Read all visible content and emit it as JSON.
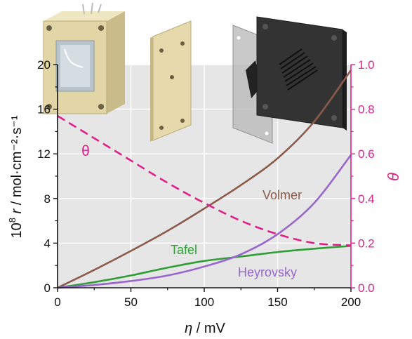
{
  "chart_data": {
    "type": "line",
    "xlabel": {
      "sym": "η",
      "rest": " / mV"
    },
    "ylabel_left": {
      "pre": "10",
      "sup": "8",
      "sym": " r",
      "rest": " / mol·cm⁻²·s⁻¹"
    },
    "ylabel_right": {
      "sym": "θ"
    },
    "xlim": [
      0,
      200
    ],
    "ylim_left": [
      0,
      20
    ],
    "ylim_right": [
      0.0,
      1.0
    ],
    "xticks": [
      "0",
      "50",
      "100",
      "150",
      "200"
    ],
    "yticks_left": [
      "0",
      "4",
      "8",
      "12",
      "16",
      "20"
    ],
    "yticks_right": [
      "0.0",
      "0.2",
      "0.4",
      "0.6",
      "0.8",
      "1.0"
    ],
    "grid": true,
    "colors": {
      "volmer": "#8b5a4a",
      "tafel": "#2e9e35",
      "heyrovsky": "#9966cc",
      "theta": "#e0208a",
      "plot_bg": "#e6e6e6",
      "grid": "#ffffff"
    },
    "series": [
      {
        "name": "Volmer",
        "axis": "left",
        "x": [
          0,
          25,
          50,
          75,
          100,
          125,
          150,
          175,
          200
        ],
        "y": [
          0.0,
          1.6,
          3.3,
          5.1,
          7.1,
          9.2,
          11.6,
          14.9,
          19.5
        ]
      },
      {
        "name": "Tafel",
        "axis": "left",
        "x": [
          0,
          25,
          50,
          75,
          100,
          125,
          150,
          175,
          200
        ],
        "y": [
          0.0,
          0.5,
          1.1,
          1.8,
          2.4,
          2.8,
          3.2,
          3.5,
          3.75
        ]
      },
      {
        "name": "Heyrovsky",
        "axis": "left",
        "x": [
          0,
          25,
          50,
          75,
          100,
          125,
          150,
          175,
          200
        ],
        "y": [
          0.0,
          0.25,
          0.6,
          1.1,
          1.9,
          3.0,
          4.8,
          7.6,
          11.9
        ]
      },
      {
        "name": "θ",
        "axis": "right",
        "x": [
          0,
          25,
          50,
          75,
          100,
          125,
          150,
          175,
          200
        ],
        "y": [
          0.77,
          0.67,
          0.57,
          0.47,
          0.38,
          0.3,
          0.24,
          0.2,
          0.19
        ],
        "dashed": true
      }
    ],
    "annotations": [
      {
        "text": "Volmer",
        "series": 0
      },
      {
        "text": "Tafel",
        "series": 1
      },
      {
        "text": "Heyrovsky",
        "series": 2
      },
      {
        "text": "θ",
        "series": 3
      }
    ]
  },
  "illustration": {
    "icons": [
      "electrochemical-cell-box-icon",
      "electrode-plate-stack-icon"
    ]
  }
}
